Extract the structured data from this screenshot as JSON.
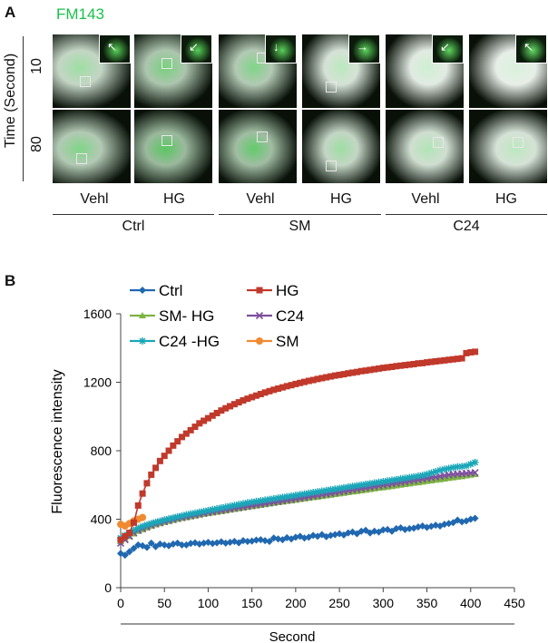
{
  "panel_a": {
    "letter": "A",
    "dye": "FM143",
    "dye_color": "#18c24a",
    "time_axis_title": "Time (Second)",
    "time_rows": [
      "10",
      "80"
    ],
    "columns": [
      "Vehl",
      "HG",
      "Vehl",
      "HG",
      "Vehl",
      "HG"
    ],
    "groups": [
      "Ctrl",
      "SM",
      "C24"
    ]
  },
  "panel_b": {
    "letter": "B"
  },
  "chart_data": {
    "type": "line",
    "ylabel": "Fluorescence intensity",
    "xlabel": "Second",
    "xlim": [
      0,
      450
    ],
    "ylim": [
      0,
      1600
    ],
    "xticks": [
      "0",
      "50",
      "100",
      "150",
      "200",
      "250",
      "300",
      "350",
      "400",
      "450"
    ],
    "yticks": [
      "0",
      "400",
      "800",
      "1200",
      "1600"
    ],
    "legend": [
      "Ctrl",
      "HG",
      "SM- HG",
      "C24",
      "C24 -HG",
      "SM"
    ],
    "series": [
      {
        "name": "Ctrl",
        "color": "#2068b0",
        "marker": "diamond",
        "x": [
          0,
          5,
          10,
          15,
          20,
          25,
          30,
          35,
          40,
          45,
          50,
          55,
          60,
          65,
          70,
          75,
          80,
          85,
          90,
          95,
          100,
          105,
          110,
          115,
          120,
          125,
          130,
          135,
          140,
          145,
          150,
          155,
          160,
          165,
          170,
          175,
          180,
          185,
          190,
          195,
          200,
          205,
          210,
          215,
          220,
          225,
          230,
          235,
          240,
          245,
          250,
          255,
          260,
          265,
          270,
          275,
          280,
          285,
          290,
          295,
          300,
          305,
          310,
          315,
          320,
          325,
          330,
          335,
          340,
          345,
          350,
          355,
          360,
          365,
          370,
          375,
          380,
          385,
          390,
          395,
          400,
          405
        ],
        "y": [
          200,
          190,
          210,
          230,
          250,
          245,
          235,
          260,
          240,
          255,
          250,
          245,
          255,
          260,
          250,
          250,
          258,
          262,
          255,
          260,
          265,
          258,
          262,
          268,
          260,
          265,
          270,
          262,
          275,
          270,
          272,
          278,
          280,
          275,
          270,
          290,
          285,
          280,
          292,
          285,
          295,
          300,
          290,
          295,
          305,
          300,
          310,
          298,
          305,
          310,
          315,
          308,
          320,
          325,
          315,
          330,
          335,
          320,
          330,
          325,
          338,
          340,
          330,
          345,
          350,
          340,
          345,
          348,
          355,
          360,
          352,
          358,
          365,
          360,
          370,
          375,
          380,
          395,
          385,
          390,
          400,
          405
        ]
      },
      {
        "name": "HG",
        "color": "#c0392b",
        "marker": "square",
        "x": [
          0,
          5,
          10,
          15,
          20,
          25,
          30,
          35,
          40,
          45,
          50,
          55,
          60,
          65,
          70,
          75,
          80,
          85,
          90,
          95,
          100,
          105,
          110,
          115,
          120,
          125,
          130,
          135,
          140,
          145,
          150,
          155,
          160,
          165,
          170,
          175,
          180,
          185,
          190,
          195,
          200,
          205,
          210,
          215,
          220,
          225,
          230,
          235,
          240,
          245,
          250,
          255,
          260,
          265,
          270,
          275,
          280,
          285,
          290,
          295,
          300,
          305,
          310,
          315,
          320,
          325,
          330,
          335,
          340,
          345,
          350,
          355,
          360,
          365,
          370,
          375,
          380,
          385,
          390,
          395,
          400,
          405
        ],
        "y": [
          280,
          300,
          320,
          380,
          480,
          550,
          610,
          660,
          700,
          740,
          770,
          800,
          830,
          855,
          880,
          900,
          920,
          940,
          960,
          975,
          990,
          1005,
          1020,
          1035,
          1048,
          1060,
          1072,
          1083,
          1094,
          1104,
          1113,
          1122,
          1131,
          1140,
          1148,
          1156,
          1163,
          1170,
          1177,
          1183,
          1190,
          1196,
          1202,
          1208,
          1213,
          1219,
          1224,
          1229,
          1234,
          1239,
          1243,
          1247,
          1252,
          1256,
          1260,
          1265,
          1268,
          1272,
          1276,
          1280,
          1284,
          1287,
          1290,
          1294,
          1297,
          1300,
          1303,
          1306,
          1310,
          1312,
          1316,
          1319,
          1322,
          1325,
          1328,
          1331,
          1334,
          1337,
          1340,
          1370,
          1375,
          1378
        ]
      },
      {
        "name": "SM- HG",
        "color": "#7cb342",
        "marker": "triangle",
        "x": [
          0,
          5,
          10,
          15,
          20,
          25,
          30,
          35,
          40,
          45,
          50,
          55,
          60,
          65,
          70,
          75,
          80,
          85,
          90,
          95,
          100,
          105,
          110,
          115,
          120,
          125,
          130,
          135,
          140,
          145,
          150,
          155,
          160,
          165,
          170,
          175,
          180,
          185,
          190,
          195,
          200,
          205,
          210,
          215,
          220,
          225,
          230,
          235,
          240,
          245,
          250,
          255,
          260,
          265,
          270,
          275,
          280,
          285,
          290,
          295,
          300,
          305,
          310,
          315,
          320,
          325,
          330,
          335,
          340,
          345,
          350,
          355,
          360,
          365,
          370,
          375,
          380,
          385,
          390,
          395,
          400,
          405
        ],
        "y": [
          270,
          285,
          300,
          315,
          330,
          340,
          350,
          360,
          368,
          375,
          382,
          388,
          394,
          400,
          405,
          410,
          415,
          420,
          425,
          430,
          434,
          438,
          442,
          446,
          450,
          454,
          458,
          462,
          466,
          470,
          474,
          478,
          482,
          486,
          490,
          494,
          498,
          501,
          505,
          508,
          512,
          516,
          520,
          523,
          527,
          530,
          534,
          538,
          541,
          545,
          549,
          552,
          556,
          560,
          563,
          567,
          570,
          574,
          578,
          582,
          585,
          589,
          592,
          596,
          600,
          604,
          607,
          611,
          614,
          618,
          622,
          625,
          629,
          632,
          636,
          640,
          643,
          647,
          650,
          654,
          658,
          662
        ]
      },
      {
        "name": "C24",
        "color": "#7d4e9e",
        "marker": "x",
        "x": [
          0,
          5,
          10,
          15,
          20,
          25,
          30,
          35,
          40,
          45,
          50,
          55,
          60,
          65,
          70,
          75,
          80,
          85,
          90,
          95,
          100,
          105,
          110,
          115,
          120,
          125,
          130,
          135,
          140,
          145,
          150,
          155,
          160,
          165,
          170,
          175,
          180,
          185,
          190,
          195,
          200,
          205,
          210,
          215,
          220,
          225,
          230,
          235,
          240,
          245,
          250,
          255,
          260,
          265,
          270,
          275,
          280,
          285,
          290,
          295,
          300,
          305,
          310,
          315,
          320,
          325,
          330,
          335,
          340,
          345,
          350,
          355,
          360,
          365,
          370,
          375,
          380,
          385,
          390,
          395,
          400,
          405
        ],
        "y": [
          260,
          280,
          300,
          320,
          335,
          345,
          355,
          364,
          372,
          379,
          386,
          392,
          398,
          404,
          409,
          414,
          419,
          424,
          429,
          434,
          438,
          443,
          447,
          451,
          455,
          459,
          463,
          467,
          471,
          475,
          479,
          483,
          487,
          491,
          495,
          499,
          503,
          507,
          511,
          515,
          519,
          523,
          527,
          531,
          535,
          539,
          543,
          547,
          551,
          555,
          559,
          563,
          567,
          571,
          575,
          579,
          583,
          587,
          591,
          595,
          599,
          603,
          607,
          611,
          615,
          619,
          623,
          627,
          631,
          635,
          639,
          643,
          647,
          651,
          655,
          659,
          662,
          664,
          666,
          668,
          670,
          672
        ]
      },
      {
        "name": "C24 -HG",
        "color": "#1aa7b8",
        "marker": "star",
        "x": [
          0,
          5,
          10,
          15,
          20,
          25,
          30,
          35,
          40,
          45,
          50,
          55,
          60,
          65,
          70,
          75,
          80,
          85,
          90,
          95,
          100,
          105,
          110,
          115,
          120,
          125,
          130,
          135,
          140,
          145,
          150,
          155,
          160,
          165,
          170,
          175,
          180,
          185,
          190,
          195,
          200,
          205,
          210,
          215,
          220,
          225,
          230,
          235,
          240,
          245,
          250,
          255,
          260,
          265,
          270,
          275,
          280,
          285,
          290,
          295,
          300,
          305,
          310,
          315,
          320,
          325,
          330,
          335,
          340,
          345,
          350,
          355,
          360,
          365,
          370,
          375,
          380,
          385,
          390,
          395,
          400,
          405
        ],
        "y": [
          290,
          305,
          320,
          335,
          348,
          358,
          367,
          375,
          382,
          389,
          396,
          402,
          408,
          414,
          420,
          426,
          431,
          436,
          441,
          446,
          451,
          456,
          461,
          466,
          471,
          476,
          481,
          486,
          491,
          496,
          500,
          504,
          508,
          512,
          516,
          520,
          524,
          528,
          532,
          536,
          540,
          544,
          548,
          552,
          556,
          560,
          564,
          568,
          572,
          576,
          580,
          584,
          588,
          592,
          596,
          600,
          604,
          608,
          612,
          616,
          620,
          624,
          628,
          632,
          636,
          640,
          644,
          648,
          652,
          656,
          662,
          670,
          678,
          686,
          692,
          697,
          702,
          706,
          708,
          712,
          722,
          732
        ]
      },
      {
        "name": "SM",
        "color": "#f08a30",
        "marker": "circle",
        "x": [
          0,
          5,
          10,
          15,
          20,
          25
        ],
        "y": [
          370,
          360,
          375,
          390,
          400,
          410
        ]
      }
    ]
  }
}
